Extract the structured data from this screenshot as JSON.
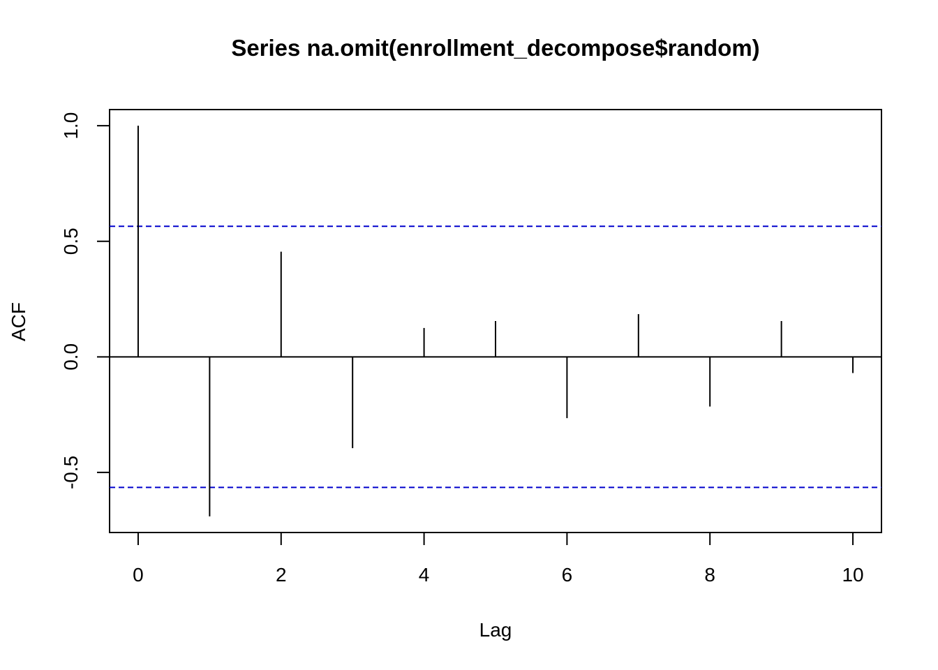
{
  "chart_data": {
    "type": "bar",
    "title": "Series  na.omit(enrollment_decompose$random)",
    "xlabel": "Lag",
    "ylabel": "ACF",
    "xlim": [
      -0.4,
      10.4
    ],
    "ylim": [
      -0.76,
      1.07
    ],
    "x_ticks": [
      "0",
      "2",
      "4",
      "6",
      "8",
      "10"
    ],
    "x_tick_values": [
      0,
      2,
      4,
      6,
      8,
      10
    ],
    "y_ticks": [
      "-0.5",
      "0.0",
      "0.5",
      "1.0"
    ],
    "y_tick_values": [
      -0.5,
      0.0,
      0.5,
      1.0
    ],
    "lags": [
      0,
      1,
      2,
      3,
      4,
      5,
      6,
      7,
      8,
      9,
      10
    ],
    "values": [
      1.0,
      -0.69,
      0.455,
      -0.395,
      0.125,
      0.155,
      -0.265,
      0.185,
      -0.215,
      0.155,
      -0.07
    ],
    "confidence_bound": 0.565,
    "ci_color": "#0000cc",
    "bar_color": "#000000",
    "grid": false
  }
}
